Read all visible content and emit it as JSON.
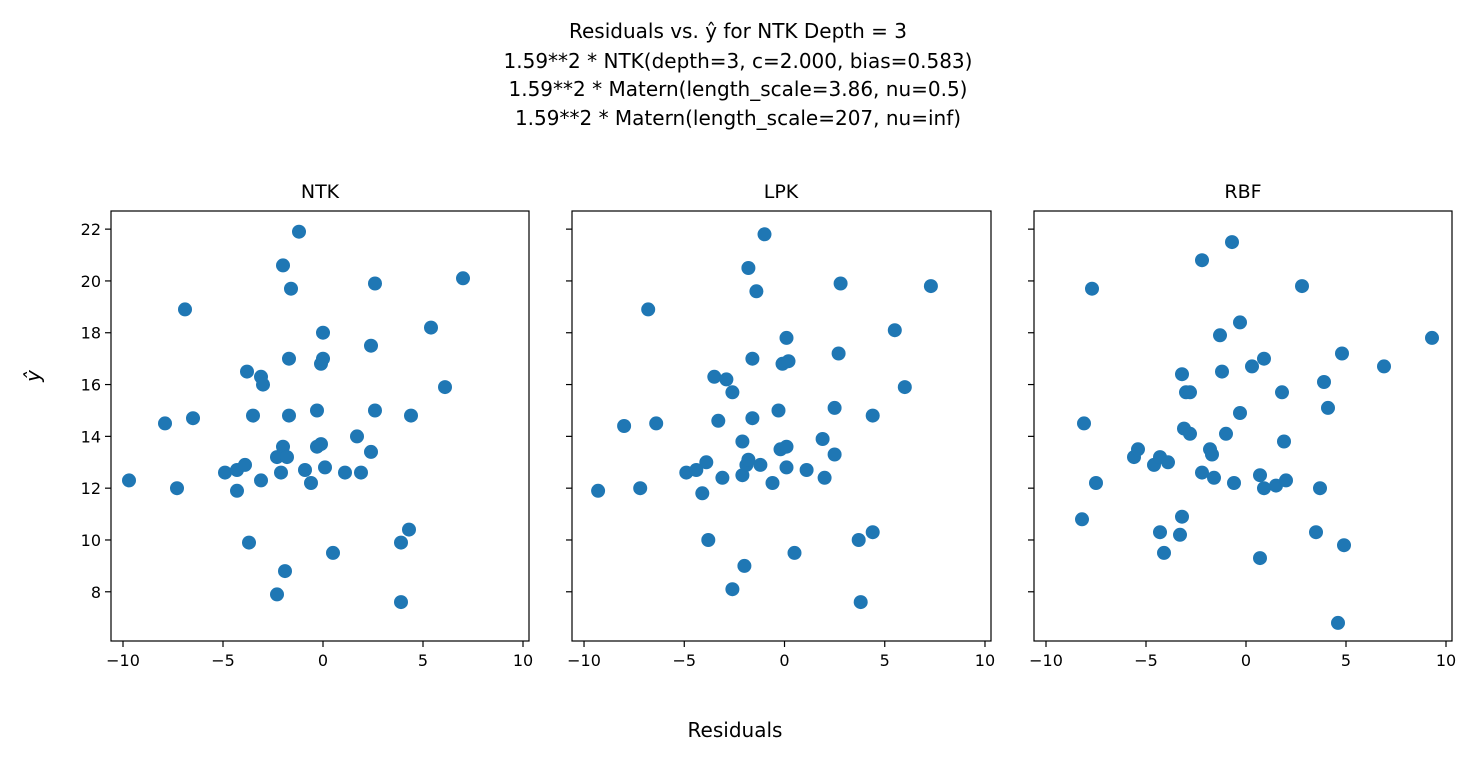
{
  "figure": {
    "title_lines": [
      "Residuals vs. ŷ for NTK Depth = 3",
      "1.59**2 * NTK(depth=3, c=2.000, bias=0.583)",
      "1.59**2 * Matern(length_scale=3.86, nu=0.5)",
      "1.59**2 * Matern(length_scale=207, nu=inf)"
    ],
    "xlabel": "Residuals",
    "ylabel": "ŷ"
  },
  "chart_data": [
    {
      "type": "scatter",
      "title": "NTK",
      "xlim": [
        -10.6,
        10.3
      ],
      "ylim": [
        6.1,
        22.7
      ],
      "xticks": [
        -10,
        -5,
        0,
        5,
        10
      ],
      "yticks": [
        8,
        10,
        12,
        14,
        16,
        18,
        20,
        22
      ],
      "color": "#1f77b4",
      "points": [
        [
          -9.7,
          12.3
        ],
        [
          -7.9,
          14.5
        ],
        [
          -7.3,
          12.0
        ],
        [
          -6.9,
          18.9
        ],
        [
          -6.5,
          14.7
        ],
        [
          -4.9,
          12.6
        ],
        [
          -4.3,
          12.7
        ],
        [
          -4.3,
          11.9
        ],
        [
          -3.9,
          12.9
        ],
        [
          -3.8,
          16.5
        ],
        [
          -3.7,
          9.9
        ],
        [
          -3.5,
          14.8
        ],
        [
          -3.1,
          16.3
        ],
        [
          -3.1,
          12.3
        ],
        [
          -3.0,
          16.0
        ],
        [
          -2.3,
          13.2
        ],
        [
          -2.3,
          7.9
        ],
        [
          -2.1,
          12.6
        ],
        [
          -2.0,
          13.6
        ],
        [
          -2.0,
          20.6
        ],
        [
          -1.9,
          8.8
        ],
        [
          -1.8,
          13.2
        ],
        [
          -1.7,
          14.8
        ],
        [
          -1.7,
          17.0
        ],
        [
          -1.6,
          19.7
        ],
        [
          -1.2,
          21.9
        ],
        [
          -0.9,
          12.7
        ],
        [
          -0.6,
          12.2
        ],
        [
          -0.3,
          15.0
        ],
        [
          -0.3,
          13.6
        ],
        [
          -0.1,
          13.7
        ],
        [
          -0.1,
          16.8
        ],
        [
          0.0,
          18.0
        ],
        [
          0.0,
          17.0
        ],
        [
          0.1,
          12.8
        ],
        [
          0.5,
          9.5
        ],
        [
          1.1,
          12.6
        ],
        [
          1.7,
          14.0
        ],
        [
          1.9,
          12.6
        ],
        [
          2.4,
          13.4
        ],
        [
          2.4,
          17.5
        ],
        [
          2.6,
          15.0
        ],
        [
          2.6,
          19.9
        ],
        [
          3.9,
          9.9
        ],
        [
          3.9,
          7.6
        ],
        [
          4.3,
          10.4
        ],
        [
          4.4,
          14.8
        ],
        [
          5.4,
          18.2
        ],
        [
          6.1,
          15.9
        ],
        [
          7.0,
          20.1
        ]
      ]
    },
    {
      "type": "scatter",
      "title": "LPK",
      "xlim": [
        -10.6,
        10.3
      ],
      "ylim": [
        6.1,
        22.7
      ],
      "xticks": [
        -10,
        -5,
        0,
        5,
        10
      ],
      "yticks": [
        8,
        10,
        12,
        14,
        16,
        18,
        20,
        22
      ],
      "color": "#1f77b4",
      "points": [
        [
          -9.3,
          11.9
        ],
        [
          -8.0,
          14.4
        ],
        [
          -7.2,
          12.0
        ],
        [
          -6.8,
          18.9
        ],
        [
          -6.4,
          14.5
        ],
        [
          -4.9,
          12.6
        ],
        [
          -4.4,
          12.7
        ],
        [
          -4.1,
          11.8
        ],
        [
          -3.9,
          13.0
        ],
        [
          -3.8,
          10.0
        ],
        [
          -3.5,
          16.3
        ],
        [
          -3.3,
          14.6
        ],
        [
          -3.1,
          12.4
        ],
        [
          -2.9,
          16.2
        ],
        [
          -2.6,
          15.7
        ],
        [
          -2.6,
          8.1
        ],
        [
          -2.1,
          13.8
        ],
        [
          -2.1,
          12.5
        ],
        [
          -2.0,
          9.0
        ],
        [
          -1.9,
          12.9
        ],
        [
          -1.8,
          20.5
        ],
        [
          -1.8,
          13.1
        ],
        [
          -1.6,
          14.7
        ],
        [
          -1.6,
          17.0
        ],
        [
          -1.4,
          19.6
        ],
        [
          -1.2,
          12.9
        ],
        [
          -1.0,
          21.8
        ],
        [
          -0.6,
          12.2
        ],
        [
          -0.3,
          15.0
        ],
        [
          -0.2,
          13.5
        ],
        [
          -0.1,
          16.8
        ],
        [
          0.1,
          13.6
        ],
        [
          0.1,
          17.8
        ],
        [
          0.1,
          12.8
        ],
        [
          0.2,
          16.9
        ],
        [
          0.5,
          9.5
        ],
        [
          1.1,
          12.7
        ],
        [
          1.9,
          13.9
        ],
        [
          2.0,
          12.4
        ],
        [
          2.5,
          15.1
        ],
        [
          2.5,
          13.3
        ],
        [
          2.7,
          17.2
        ],
        [
          2.8,
          19.9
        ],
        [
          3.7,
          10.0
        ],
        [
          3.8,
          7.6
        ],
        [
          4.4,
          10.3
        ],
        [
          4.4,
          14.8
        ],
        [
          5.5,
          18.1
        ],
        [
          6.0,
          15.9
        ],
        [
          7.3,
          19.8
        ]
      ]
    },
    {
      "type": "scatter",
      "title": "RBF",
      "xlim": [
        -10.6,
        10.3
      ],
      "ylim": [
        6.1,
        22.7
      ],
      "xticks": [
        -10,
        -5,
        0,
        5,
        10
      ],
      "yticks": [
        8,
        10,
        12,
        14,
        16,
        18,
        20,
        22
      ],
      "color": "#1f77b4",
      "points": [
        [
          -8.2,
          10.8
        ],
        [
          -8.1,
          14.5
        ],
        [
          -7.7,
          19.7
        ],
        [
          -7.5,
          12.2
        ],
        [
          -5.6,
          13.2
        ],
        [
          -5.4,
          13.5
        ],
        [
          -4.6,
          12.9
        ],
        [
          -4.3,
          13.2
        ],
        [
          -4.3,
          10.3
        ],
        [
          -4.1,
          9.5
        ],
        [
          -3.9,
          13.0
        ],
        [
          -3.3,
          10.2
        ],
        [
          -3.2,
          10.9
        ],
        [
          -3.2,
          16.4
        ],
        [
          -3.1,
          14.3
        ],
        [
          -3.0,
          15.7
        ],
        [
          -2.8,
          15.7
        ],
        [
          -2.8,
          14.1
        ],
        [
          -2.2,
          20.8
        ],
        [
          -2.2,
          12.6
        ],
        [
          -1.8,
          13.5
        ],
        [
          -1.7,
          13.3
        ],
        [
          -1.6,
          12.4
        ],
        [
          -1.3,
          17.9
        ],
        [
          -1.2,
          16.5
        ],
        [
          -1.0,
          14.1
        ],
        [
          -0.7,
          21.5
        ],
        [
          -0.6,
          12.2
        ],
        [
          -0.3,
          18.4
        ],
        [
          -0.3,
          14.9
        ],
        [
          0.3,
          16.7
        ],
        [
          0.7,
          9.3
        ],
        [
          0.7,
          12.5
        ],
        [
          0.9,
          17.0
        ],
        [
          0.9,
          12.0
        ],
        [
          1.5,
          12.1
        ],
        [
          1.8,
          15.7
        ],
        [
          1.9,
          13.8
        ],
        [
          2.0,
          12.3
        ],
        [
          2.8,
          19.8
        ],
        [
          3.5,
          10.3
        ],
        [
          3.7,
          12.0
        ],
        [
          3.9,
          16.1
        ],
        [
          4.1,
          15.1
        ],
        [
          4.6,
          6.8
        ],
        [
          4.8,
          17.2
        ],
        [
          4.9,
          9.8
        ],
        [
          6.9,
          16.7
        ],
        [
          9.3,
          17.8
        ]
      ]
    }
  ]
}
